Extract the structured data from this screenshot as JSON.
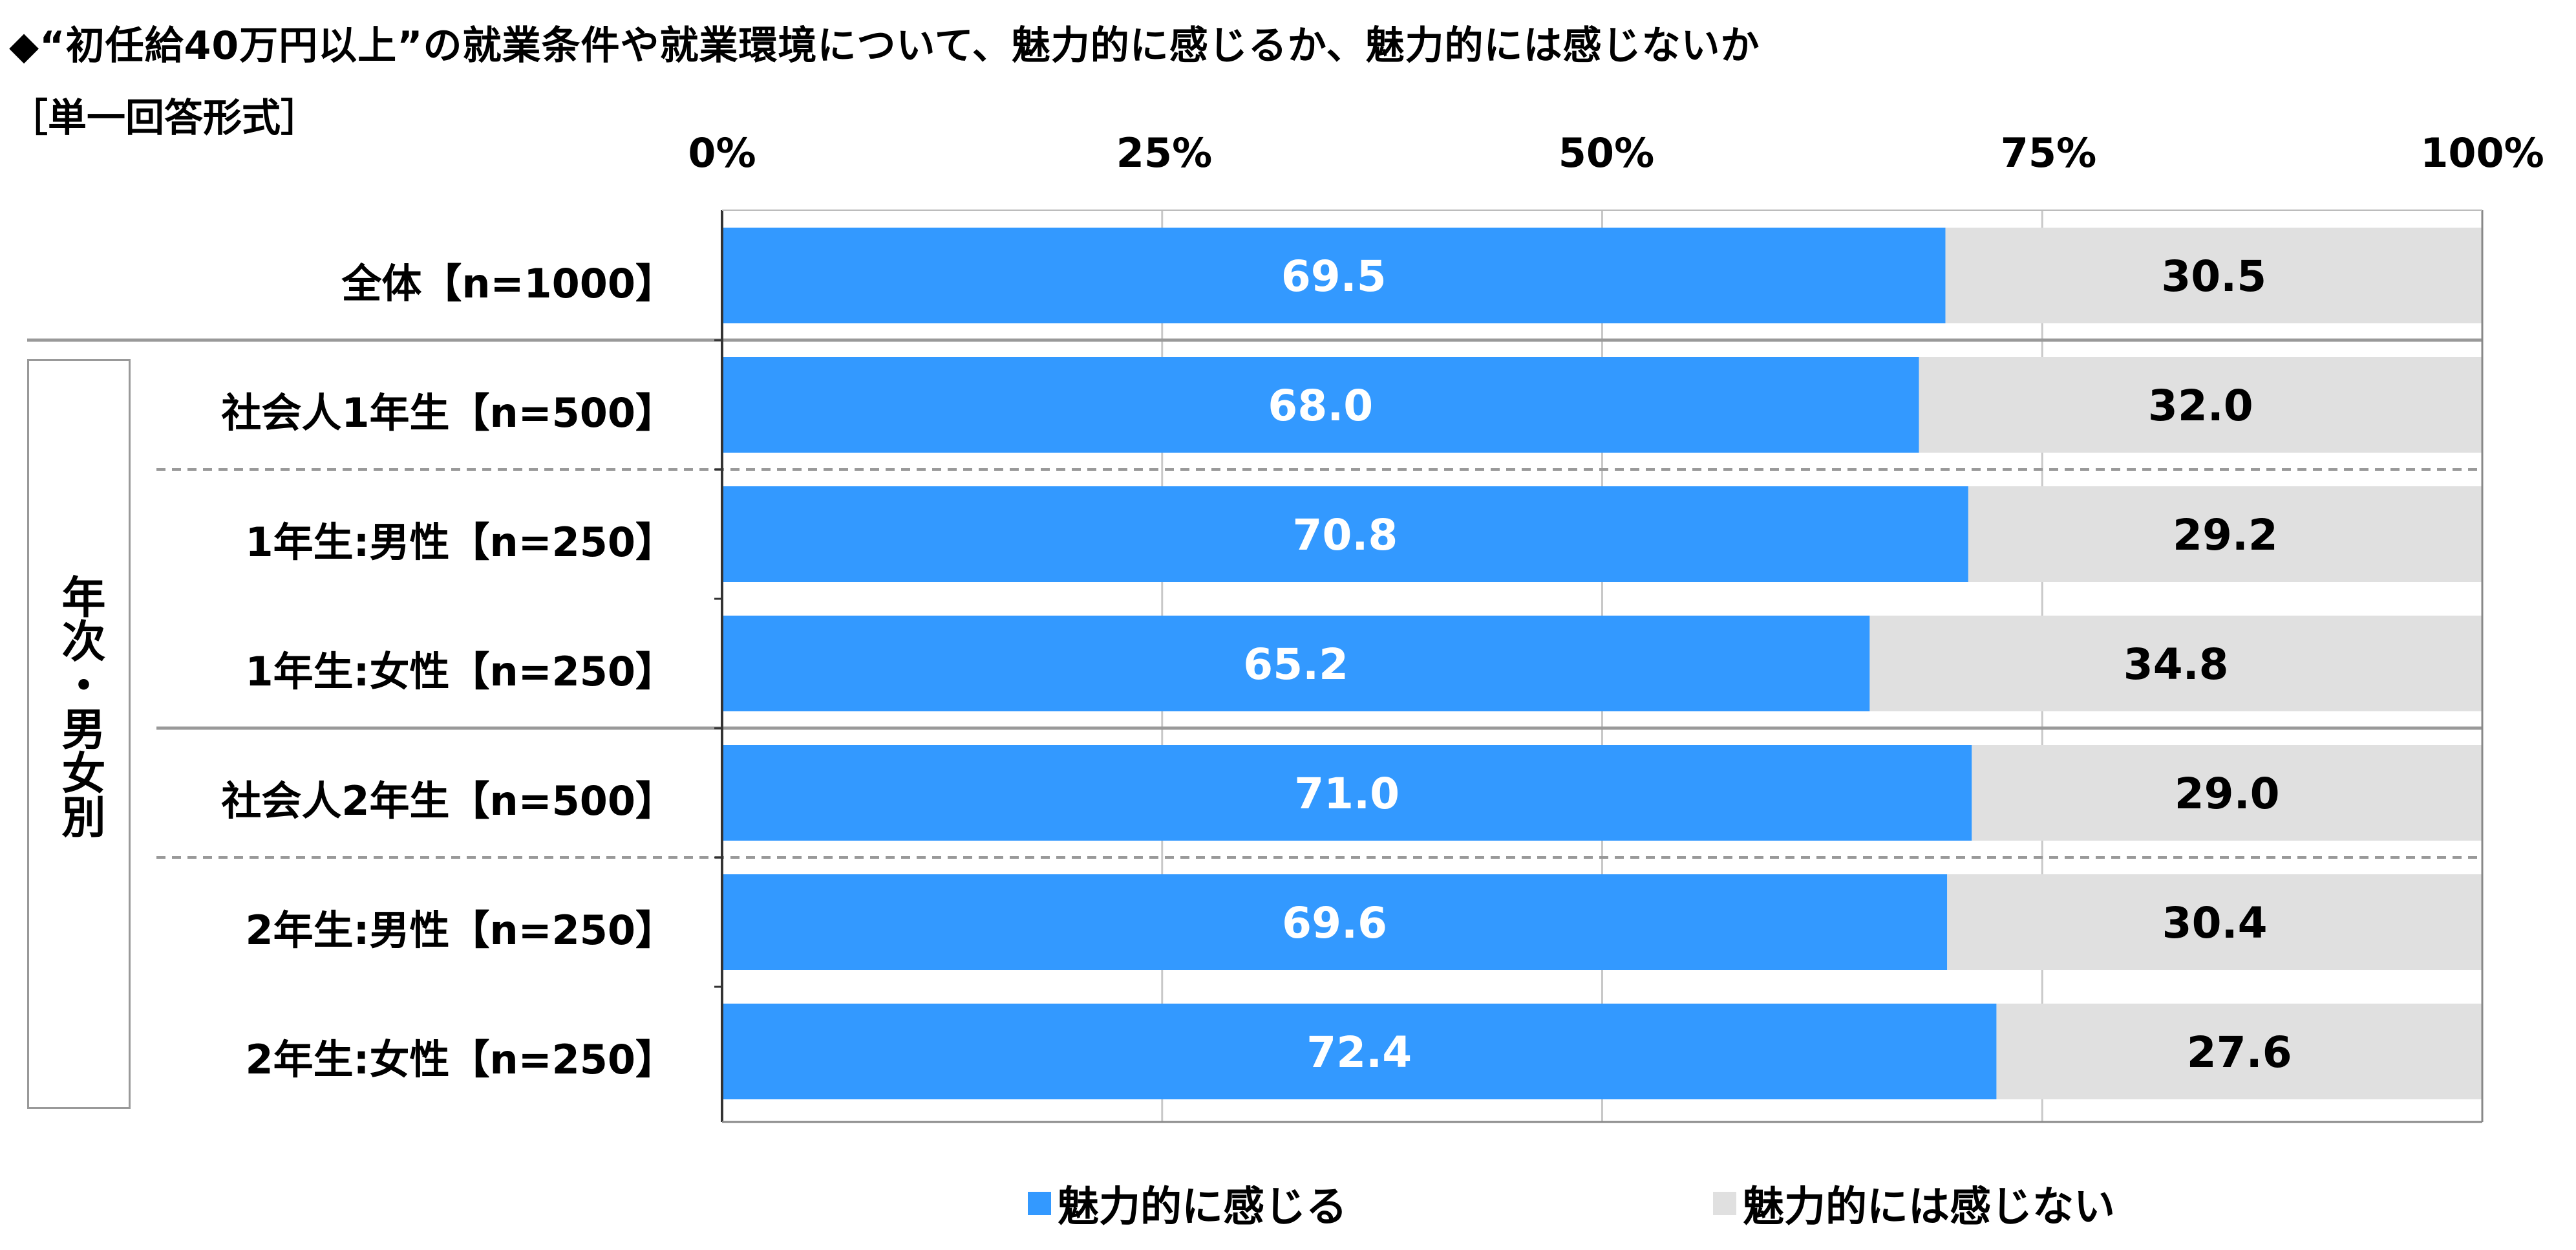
{
  "title": "◆“初任給40万円以上”の就業条件や就業環境について、魅力的に感じるか、魅力的には感じないか",
  "subtitle": "［単一回答形式］",
  "colors": {
    "attractive": "#3399ff",
    "not_attractive": "#e0e0e0",
    "gridline": "#c8c8c8",
    "separator": "#999999"
  },
  "group_label": "年次・男女別",
  "chart_data": {
    "type": "bar",
    "orientation": "horizontal",
    "stacked": "100%",
    "xlim": [
      0,
      100
    ],
    "xticks": [
      "0%",
      "25%",
      "50%",
      "75%",
      "100%"
    ],
    "categories": [
      "全体【n=1000】",
      "社会人1年生【n=500】",
      "1年生:男性【n=250】",
      "1年生:女性【n=250】",
      "社会人2年生【n=500】",
      "2年生:男性【n=250】",
      "2年生:女性【n=250】"
    ],
    "series": [
      {
        "name": "魅力的に感じる",
        "values": [
          69.5,
          68.0,
          70.8,
          65.2,
          71.0,
          69.6,
          72.4
        ],
        "labels": [
          "69.5",
          "68.0",
          "70.8",
          "65.2",
          "71.0",
          "69.6",
          "72.4"
        ]
      },
      {
        "name": "魅力的には感じない",
        "values": [
          30.5,
          32.0,
          29.2,
          34.8,
          29.0,
          30.4,
          27.6
        ],
        "labels": [
          "30.5",
          "32.0",
          "29.2",
          "34.8",
          "29.0",
          "30.4",
          "27.6"
        ]
      }
    ],
    "legend_position": "bottom",
    "grid": true
  }
}
